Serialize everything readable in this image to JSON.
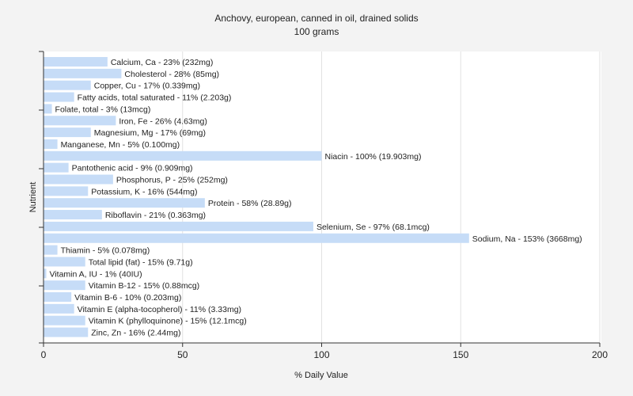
{
  "chart_data": {
    "type": "bar",
    "orientation": "horizontal",
    "title": "Anchovy, european, canned in oil, drained solids",
    "subtitle": "100 grams",
    "xlabel": "% Daily Value",
    "ylabel": "Nutrient",
    "xlim": [
      0,
      200
    ],
    "xticks": [
      0,
      50,
      100,
      150,
      200
    ],
    "grid": true,
    "bar_color": "#c6dcf7",
    "categories": [
      "Calcium, Ca",
      "Cholesterol",
      "Copper, Cu",
      "Fatty acids, total saturated",
      "Folate, total",
      "Iron, Fe",
      "Magnesium, Mg",
      "Manganese, Mn",
      "Niacin",
      "Pantothenic acid",
      "Phosphorus, P",
      "Potassium, K",
      "Protein",
      "Riboflavin",
      "Selenium, Se",
      "Sodium, Na",
      "Thiamin",
      "Total lipid (fat)",
      "Vitamin A, IU",
      "Vitamin B-12",
      "Vitamin B-6",
      "Vitamin E (alpha-tocopherol)",
      "Vitamin K (phylloquinone)",
      "Zinc, Zn"
    ],
    "values": [
      23,
      28,
      17,
      11,
      3,
      26,
      17,
      5,
      100,
      9,
      25,
      16,
      58,
      21,
      97,
      153,
      5,
      15,
      1,
      15,
      10,
      11,
      15,
      16
    ],
    "labels": [
      "Calcium, Ca - 23% (232mg)",
      "Cholesterol - 28% (85mg)",
      "Copper, Cu - 17% (0.339mg)",
      "Fatty acids, total saturated - 11% (2.203g)",
      "Folate, total - 3% (13mcg)",
      "Iron, Fe - 26% (4.63mg)",
      "Magnesium, Mg - 17% (69mg)",
      "Manganese, Mn - 5% (0.100mg)",
      "Niacin - 100% (19.903mg)",
      "Pantothenic acid - 9% (0.909mg)",
      "Phosphorus, P - 25% (252mg)",
      "Potassium, K - 16% (544mg)",
      "Protein - 58% (28.89g)",
      "Riboflavin - 21% (0.363mg)",
      "Selenium, Se - 97% (68.1mcg)",
      "Sodium, Na - 153% (3668mg)",
      "Thiamin - 5% (0.078mg)",
      "Total lipid (fat) - 15% (9.71g)",
      "Vitamin A, IU - 1% (40IU)",
      "Vitamin B-12 - 15% (0.88mcg)",
      "Vitamin B-6 - 10% (0.203mg)",
      "Vitamin E (alpha-tocopherol) - 11% (3.33mg)",
      "Vitamin K (phylloquinone) - 15% (12.1mcg)",
      "Zinc, Zn - 16% (2.44mg)"
    ]
  }
}
